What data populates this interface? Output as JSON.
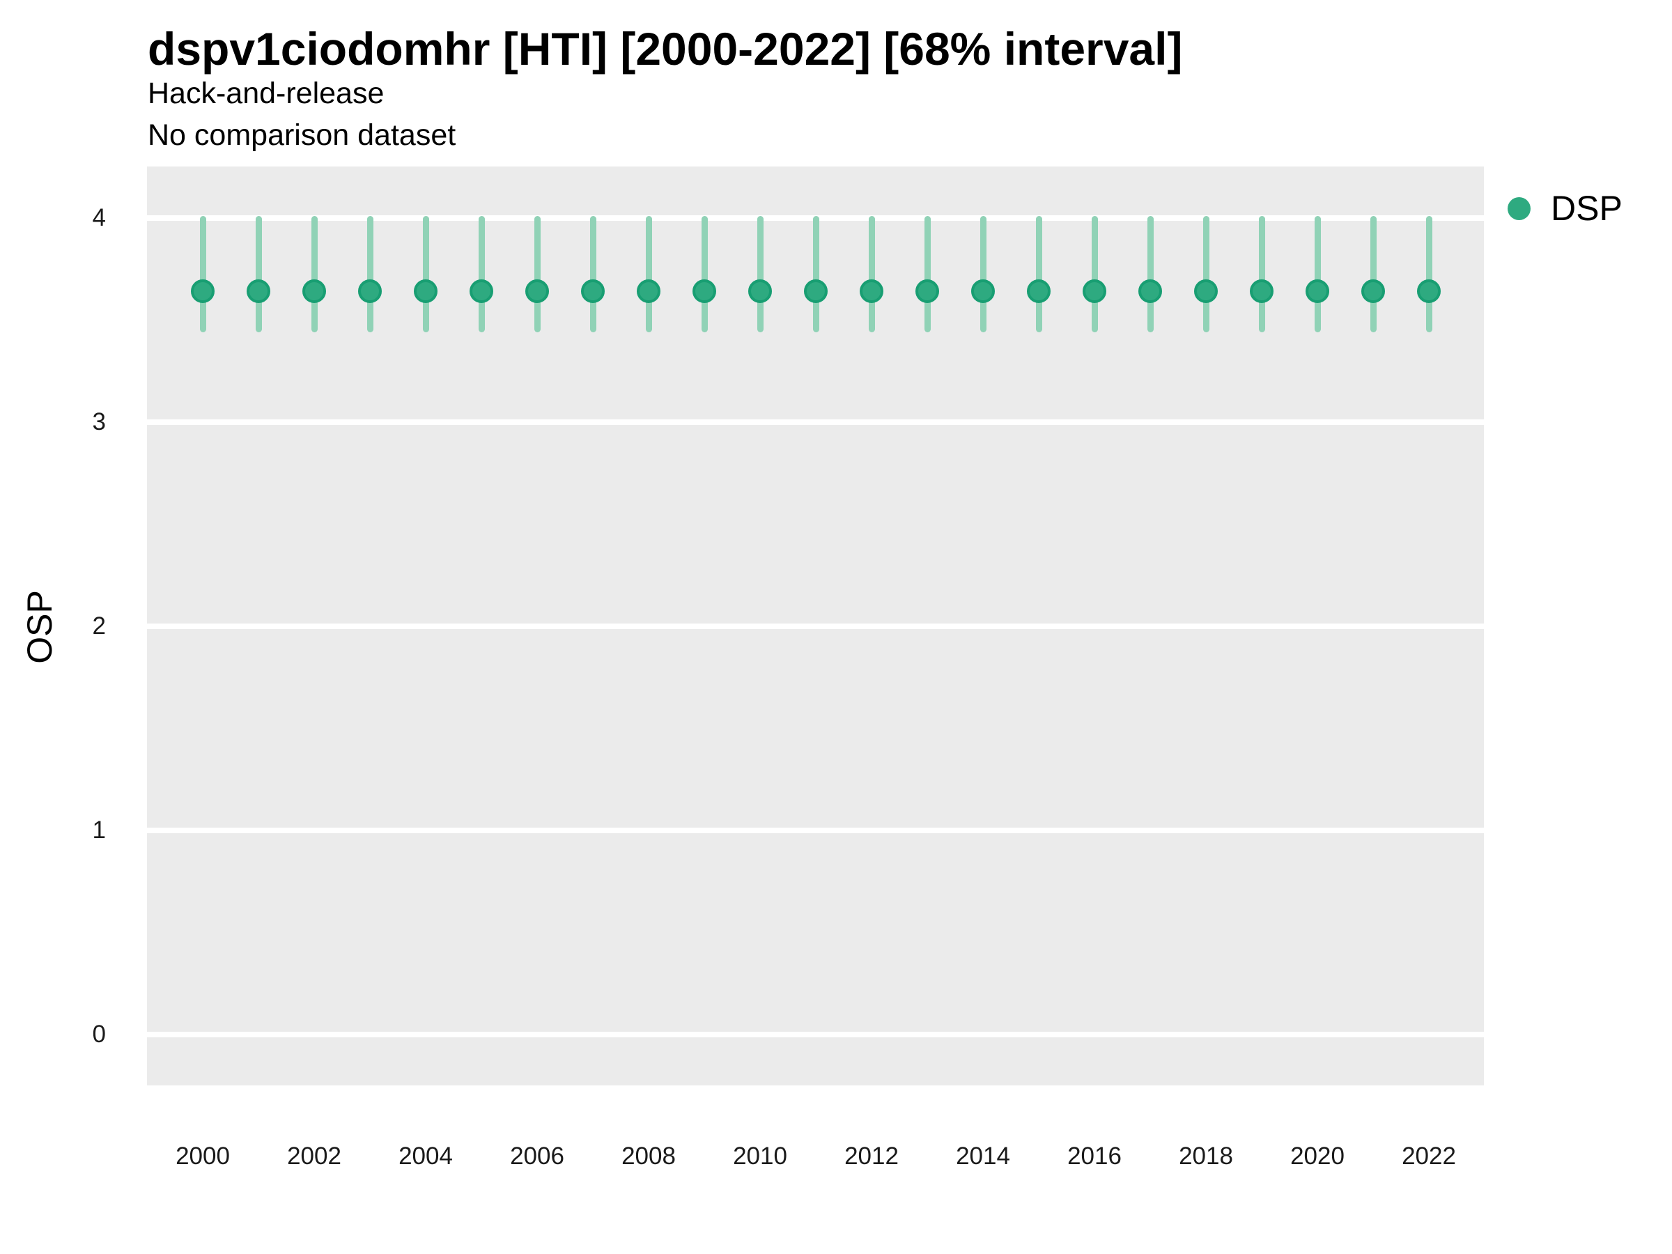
{
  "header": {
    "title": "dspv1ciodomhr [HTI] [2000-2022] [68% interval]",
    "subtitle": "Hack-and-release",
    "note": "No comparison dataset"
  },
  "legend": {
    "position": "right-top",
    "items": [
      {
        "label": "DSP",
        "color": "#2EAA80"
      }
    ]
  },
  "colors": {
    "panel_background": "#EBEBEB",
    "gridline": "#FFFFFF",
    "point_fill": "#2EAA80",
    "point_stroke": "#189E72",
    "interval_bar": "#90D2B6",
    "title_text": "#000000",
    "tick_text": "#1A1A1A"
  },
  "chart_data": {
    "type": "scatter",
    "subtype": "pointrange",
    "title": "dspv1ciodomhr [HTI] [2000-2022] [68% interval]",
    "subtitle": "Hack-and-release",
    "note": "No comparison dataset",
    "interval": "68%",
    "xlabel": "",
    "ylabel": "OSP",
    "xlim": [
      1999,
      2023
    ],
    "ylim": [
      -0.22,
      4.26
    ],
    "x_ticks": [
      2000,
      2002,
      2004,
      2006,
      2008,
      2010,
      2012,
      2014,
      2016,
      2018,
      2020,
      2022
    ],
    "y_ticks": [
      4,
      3,
      2,
      1,
      0
    ],
    "grid": "major-horizontal-only",
    "legend_position": "right",
    "series": [
      {
        "name": "DSP",
        "x": [
          2000,
          2001,
          2002,
          2003,
          2004,
          2005,
          2006,
          2007,
          2008,
          2009,
          2010,
          2011,
          2012,
          2013,
          2014,
          2015,
          2016,
          2017,
          2018,
          2019,
          2020,
          2021,
          2022
        ],
        "y": [
          3.64,
          3.64,
          3.64,
          3.64,
          3.64,
          3.64,
          3.64,
          3.64,
          3.64,
          3.64,
          3.64,
          3.64,
          3.64,
          3.64,
          3.64,
          3.64,
          3.64,
          3.64,
          3.64,
          3.64,
          3.64,
          3.64,
          3.64
        ],
        "lo": [
          3.44,
          3.44,
          3.44,
          3.44,
          3.44,
          3.44,
          3.44,
          3.44,
          3.44,
          3.44,
          3.44,
          3.44,
          3.44,
          3.44,
          3.44,
          3.44,
          3.44,
          3.44,
          3.44,
          3.44,
          3.44,
          3.44,
          3.44
        ],
        "hi": [
          4.01,
          4.01,
          4.01,
          4.01,
          4.01,
          4.01,
          4.01,
          4.01,
          4.01,
          4.01,
          4.01,
          4.01,
          4.01,
          4.01,
          4.01,
          4.01,
          4.01,
          4.01,
          4.01,
          4.01,
          4.01,
          4.01,
          4.01
        ]
      }
    ]
  }
}
